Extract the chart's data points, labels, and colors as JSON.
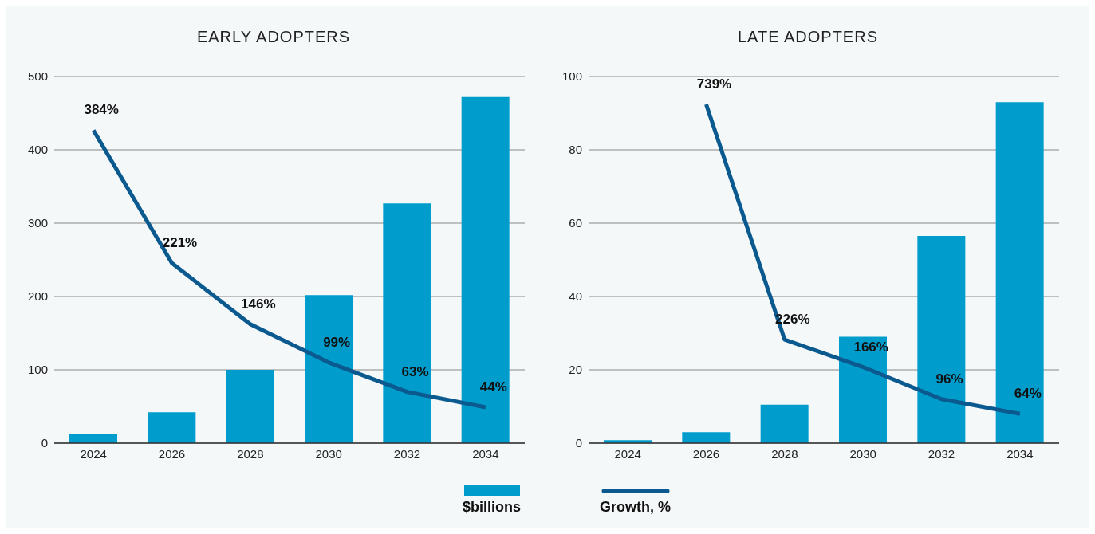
{
  "chart_data": [
    {
      "type": "bar",
      "title": "EARLY ADOPTERS",
      "categories": [
        "2024",
        "2026",
        "2028",
        "2030",
        "2032",
        "2034"
      ],
      "ylim": [
        0,
        500
      ],
      "yticks": [
        0,
        100,
        200,
        300,
        400,
        500
      ],
      "y2lim": [
        0,
        450
      ],
      "grid": "y",
      "legend": "bottom",
      "series": [
        {
          "name": "$billions",
          "color": "#009ccc",
          "values": [
            12,
            42,
            100,
            202,
            327,
            472
          ]
        },
        {
          "name": "Growth, %",
          "type": "line",
          "axis": "y2",
          "color": "#0b5a8f",
          "values": [
            384,
            221,
            146,
            99,
            63,
            44
          ],
          "value_labels": [
            "384%",
            "221%",
            "146%",
            "99%",
            "63%",
            "44%"
          ]
        }
      ]
    },
    {
      "type": "bar",
      "title": "LATE ADOPTERS",
      "categories": [
        "2024",
        "2026",
        "2028",
        "2030",
        "2032",
        "2034"
      ],
      "ylim": [
        0,
        100
      ],
      "yticks": [
        0,
        20,
        40,
        60,
        80,
        100
      ],
      "y2lim": [
        0,
        800
      ],
      "grid": "y",
      "series": [
        {
          "color": "#009ccc",
          "values": [
            0.8,
            3,
            10.5,
            29,
            56.5,
            93
          ]
        },
        {
          "type": "line",
          "axis": "y2",
          "color": "#0b5a8f",
          "values": [
            null,
            739,
            226,
            166,
            96,
            64
          ],
          "value_labels": [
            null,
            "739%",
            "226%",
            "166%",
            "96%",
            "64%"
          ]
        }
      ]
    }
  ]
}
